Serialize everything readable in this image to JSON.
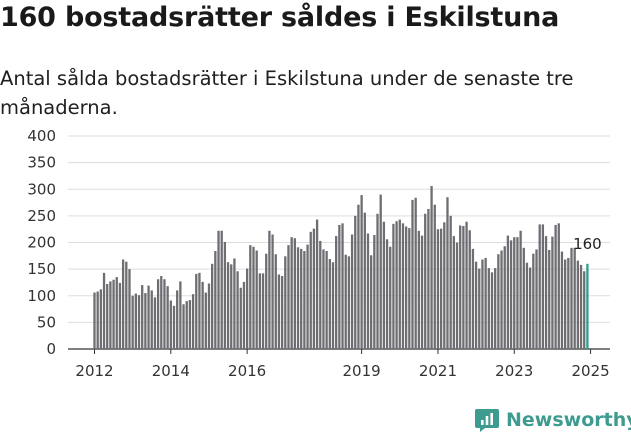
{
  "title": "160 bostadsrätter såldes i Eskilstuna",
  "subtitle": "Antal sålda bostadsrätter i Eskilstuna under de senaste tre månaderna.",
  "brand": "Newsworthy",
  "colors": {
    "bar": "#6d6d72",
    "highlight": "#2a9d8f",
    "grid": "#dddddd",
    "brand": "#3d9b8f"
  },
  "chart_data": {
    "type": "bar",
    "title": "Antal sålda bostadsrätter i Eskilstuna",
    "xlabel": "",
    "ylabel": "",
    "ylim": [
      0,
      400
    ],
    "yticks": [
      0,
      50,
      100,
      150,
      200,
      250,
      300,
      350,
      400
    ],
    "xticks": [
      "2012",
      "2014",
      "2016",
      "2019",
      "2021",
      "2023",
      "2025"
    ],
    "start": "2012-01",
    "end_label": "160",
    "grid": true,
    "values": [
      106,
      108,
      112,
      143,
      122,
      127,
      130,
      135,
      124,
      168,
      164,
      150,
      100,
      104,
      101,
      120,
      105,
      119,
      110,
      97,
      131,
      137,
      131,
      118,
      91,
      81,
      110,
      127,
      84,
      90,
      92,
      103,
      141,
      143,
      126,
      106,
      123,
      160,
      184,
      222,
      222,
      201,
      163,
      159,
      170,
      146,
      115,
      126,
      151,
      195,
      192,
      185,
      142,
      142,
      179,
      222,
      215,
      178,
      140,
      137,
      174,
      195,
      210,
      208,
      191,
      188,
      184,
      196,
      220,
      226,
      243,
      203,
      187,
      184,
      169,
      163,
      212,
      233,
      236,
      177,
      174,
      215,
      250,
      271,
      289,
      256,
      217,
      176,
      214,
      254,
      290,
      239,
      206,
      192,
      235,
      240,
      243,
      236,
      230,
      227,
      280,
      284,
      222,
      213,
      254,
      263,
      306,
      271,
      225,
      226,
      238,
      285,
      250,
      212,
      200,
      232,
      231,
      239,
      223,
      188,
      164,
      151,
      168,
      171,
      152,
      144,
      152,
      178,
      185,
      193,
      213,
      204,
      210,
      210,
      222,
      190,
      162,
      153,
      179,
      187,
      234,
      234,
      212,
      186,
      211,
      233,
      236,
      183,
      168,
      171,
      190,
      190,
      166,
      158,
      146,
      160
    ]
  }
}
